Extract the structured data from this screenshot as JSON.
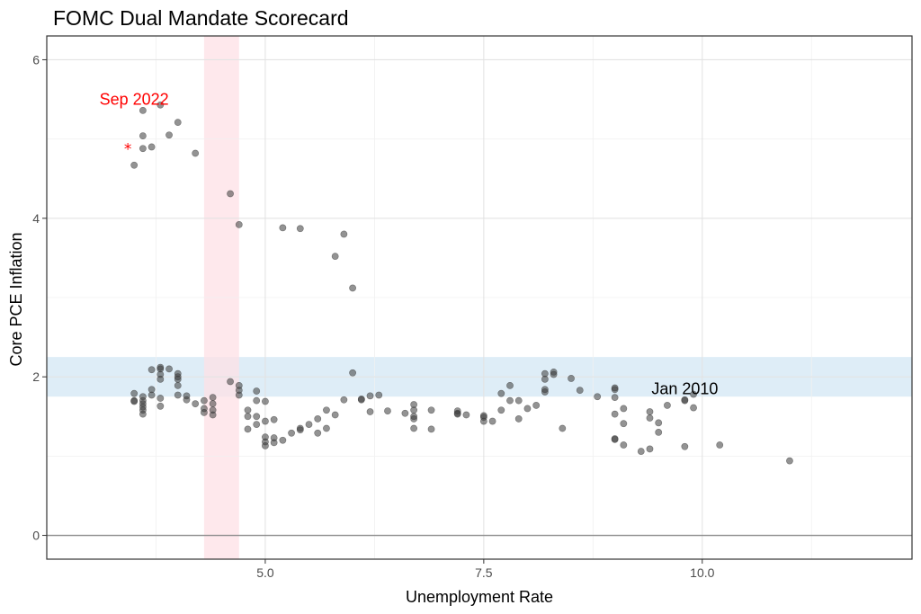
{
  "chart_data": {
    "type": "scatter",
    "title": "FOMC Dual Mandate Scorecard",
    "xlabel": "Unemployment Rate",
    "ylabel": "Core PCE Inflation",
    "xlim": [
      2.5,
      12.4
    ],
    "ylim": [
      -0.3,
      6.3
    ],
    "x_ticks": [
      5.0,
      7.5,
      10.0
    ],
    "x_tick_labels": [
      "5.0",
      "7.5",
      "10.0"
    ],
    "y_ticks": [
      0,
      2,
      4,
      6
    ],
    "y_tick_labels": [
      "0",
      "2",
      "4",
      "6"
    ],
    "grid": true,
    "target_band": {
      "ymin": 1.75,
      "ymax": 2.25,
      "color": "#d6e9f5"
    },
    "natural_rate_band": {
      "xmin": 4.3,
      "xmax": 4.7,
      "color": "#fde0e6"
    },
    "zero_line": 0,
    "point_color": "#3a3a3a",
    "annotations": [
      {
        "text": "Sep 2022",
        "x": 3.5,
        "y": 5.5,
        "color": "#ff0000"
      },
      {
        "text": "Jan 2010",
        "x": 9.8,
        "y": 1.85,
        "color": "#000000"
      }
    ],
    "highlight": {
      "label": "Sep 2022",
      "x": 3.5,
      "y": 4.9,
      "marker": "*",
      "color": "#ff0000"
    },
    "points": [
      [
        3.5,
        4.67
      ],
      [
        3.6,
        4.88
      ],
      [
        3.6,
        5.04
      ],
      [
        3.6,
        5.36
      ],
      [
        3.7,
        4.9
      ],
      [
        3.8,
        5.43
      ],
      [
        3.9,
        5.05
      ],
      [
        4.0,
        5.21
      ],
      [
        4.2,
        4.82
      ],
      [
        4.6,
        4.31
      ],
      [
        4.7,
        3.92
      ],
      [
        5.2,
        3.88
      ],
      [
        5.4,
        3.87
      ],
      [
        5.8,
        3.52
      ],
      [
        5.9,
        3.8
      ],
      [
        6.0,
        3.12
      ],
      [
        3.5,
        1.79
      ],
      [
        3.5,
        1.7
      ],
      [
        3.5,
        1.69
      ],
      [
        3.6,
        1.75
      ],
      [
        3.6,
        1.7
      ],
      [
        3.6,
        1.66
      ],
      [
        3.6,
        1.62
      ],
      [
        3.6,
        1.58
      ],
      [
        3.6,
        1.53
      ],
      [
        3.7,
        1.84
      ],
      [
        3.7,
        1.77
      ],
      [
        3.7,
        2.09
      ],
      [
        3.8,
        2.1
      ],
      [
        3.8,
        2.03
      ],
      [
        3.8,
        1.97
      ],
      [
        3.8,
        2.12
      ],
      [
        3.8,
        1.73
      ],
      [
        3.8,
        1.63
      ],
      [
        3.9,
        2.1
      ],
      [
        4.0,
        2.04
      ],
      [
        4.0,
        1.97
      ],
      [
        4.0,
        1.89
      ],
      [
        4.0,
        2.0
      ],
      [
        4.0,
        1.77
      ],
      [
        4.1,
        1.76
      ],
      [
        4.1,
        1.71
      ],
      [
        4.2,
        1.66
      ],
      [
        4.3,
        1.7
      ],
      [
        4.3,
        1.6
      ],
      [
        4.3,
        1.55
      ],
      [
        4.4,
        1.74
      ],
      [
        4.4,
        1.66
      ],
      [
        4.4,
        1.58
      ],
      [
        4.4,
        1.52
      ],
      [
        4.6,
        1.94
      ],
      [
        4.7,
        1.89
      ],
      [
        4.7,
        1.83
      ],
      [
        4.7,
        1.77
      ],
      [
        4.8,
        1.58
      ],
      [
        4.8,
        1.5
      ],
      [
        4.8,
        1.34
      ],
      [
        4.9,
        1.82
      ],
      [
        4.9,
        1.7
      ],
      [
        4.9,
        1.5
      ],
      [
        4.9,
        1.4
      ],
      [
        5.0,
        1.69
      ],
      [
        5.0,
        1.24
      ],
      [
        5.0,
        1.18
      ],
      [
        5.0,
        1.13
      ],
      [
        5.0,
        1.44
      ],
      [
        5.1,
        1.46
      ],
      [
        5.1,
        1.23
      ],
      [
        5.1,
        1.17
      ],
      [
        5.2,
        1.2
      ],
      [
        5.3,
        1.29
      ],
      [
        5.4,
        1.35
      ],
      [
        5.4,
        1.33
      ],
      [
        5.5,
        1.4
      ],
      [
        5.6,
        1.29
      ],
      [
        5.6,
        1.47
      ],
      [
        5.7,
        1.58
      ],
      [
        5.7,
        1.35
      ],
      [
        5.8,
        1.52
      ],
      [
        5.9,
        1.71
      ],
      [
        6.0,
        2.05
      ],
      [
        6.1,
        1.71
      ],
      [
        6.1,
        1.72
      ],
      [
        6.2,
        1.76
      ],
      [
        6.2,
        1.56
      ],
      [
        6.3,
        1.77
      ],
      [
        6.4,
        1.57
      ],
      [
        6.6,
        1.54
      ],
      [
        6.7,
        1.65
      ],
      [
        6.7,
        1.58
      ],
      [
        6.7,
        1.47
      ],
      [
        6.7,
        1.5
      ],
      [
        6.7,
        1.35
      ],
      [
        6.9,
        1.34
      ],
      [
        6.9,
        1.58
      ],
      [
        7.2,
        1.57
      ],
      [
        7.2,
        1.54
      ],
      [
        7.2,
        1.53
      ],
      [
        7.3,
        1.52
      ],
      [
        7.5,
        1.49
      ],
      [
        7.5,
        1.44
      ],
      [
        7.5,
        1.51
      ],
      [
        7.6,
        1.44
      ],
      [
        7.7,
        1.79
      ],
      [
        7.7,
        1.58
      ],
      [
        7.8,
        1.89
      ],
      [
        7.8,
        1.7
      ],
      [
        7.9,
        1.7
      ],
      [
        7.9,
        1.47
      ],
      [
        8.0,
        1.6
      ],
      [
        8.1,
        1.64
      ],
      [
        8.2,
        2.04
      ],
      [
        8.2,
        1.97
      ],
      [
        8.2,
        1.84
      ],
      [
        8.2,
        1.81
      ],
      [
        8.3,
        2.06
      ],
      [
        8.3,
        2.03
      ],
      [
        8.4,
        1.35
      ],
      [
        8.5,
        1.98
      ],
      [
        8.6,
        1.83
      ],
      [
        8.8,
        1.75
      ],
      [
        9.0,
        1.86
      ],
      [
        9.0,
        1.84
      ],
      [
        9.0,
        1.74
      ],
      [
        9.0,
        1.53
      ],
      [
        9.0,
        1.22
      ],
      [
        9.0,
        1.21
      ],
      [
        9.1,
        1.6
      ],
      [
        9.1,
        1.41
      ],
      [
        9.1,
        1.14
      ],
      [
        9.3,
        1.06
      ],
      [
        9.4,
        1.56
      ],
      [
        9.4,
        1.48
      ],
      [
        9.4,
        1.09
      ],
      [
        9.5,
        1.42
      ],
      [
        9.5,
        1.3
      ],
      [
        9.6,
        1.64
      ],
      [
        9.8,
        1.71
      ],
      [
        9.8,
        1.7
      ],
      [
        9.8,
        1.12
      ],
      [
        9.9,
        1.78
      ],
      [
        9.9,
        1.61
      ],
      [
        10.2,
        1.14
      ],
      [
        11.0,
        0.94
      ]
    ]
  }
}
